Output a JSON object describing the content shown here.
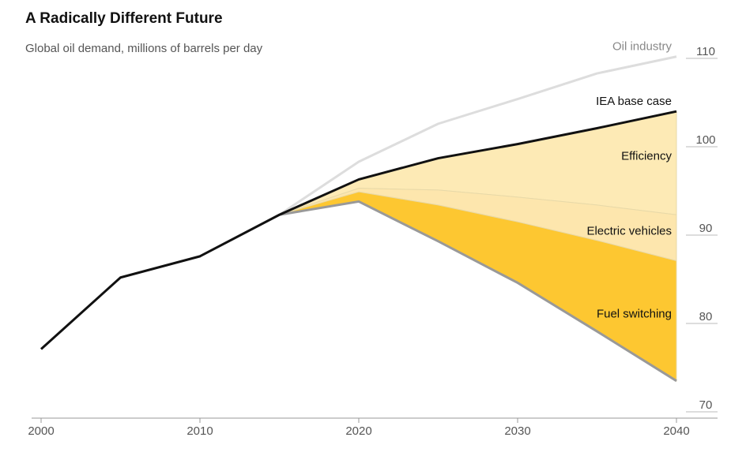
{
  "chart_data": {
    "type": "line",
    "title": "A Radically Different Future",
    "subtitle": "Global oil demand, millions of barrels per day",
    "x": [
      2000,
      2005,
      2010,
      2015,
      2020,
      2025,
      2030,
      2035,
      2040
    ],
    "xlim": [
      2000,
      2040
    ],
    "xticks": [
      2000,
      2010,
      2020,
      2030,
      2040
    ],
    "ylim": [
      70,
      110
    ],
    "yticks": [
      70,
      80,
      90,
      100,
      110
    ],
    "series": [
      {
        "name": "Oil industry",
        "kind": "line",
        "color": "#dddddd",
        "values": [
          null,
          null,
          null,
          92.3,
          98.3,
          102.6,
          105.4,
          108.3,
          110.2
        ]
      },
      {
        "name": "Efficiency",
        "kind": "area",
        "color": "#fdeab5",
        "values": [
          null,
          null,
          null,
          92.3,
          95.3,
          95.1,
          94.3,
          93.4,
          92.3
        ]
      },
      {
        "name": "Electric vehicles",
        "kind": "area",
        "color": "#fde6ad",
        "values": [
          null,
          null,
          null,
          92.3,
          94.9,
          93.4,
          91.5,
          89.4,
          87.1
        ]
      },
      {
        "name": "Fuel switching",
        "kind": "area",
        "color": "#fdc731",
        "values": [
          null,
          null,
          null,
          92.3,
          93.8,
          89.3,
          84.6,
          79.1,
          73.5
        ]
      },
      {
        "name": "IEA base case",
        "kind": "line",
        "color": "#111111",
        "values": [
          77.1,
          85.2,
          87.6,
          92.3,
          96.3,
          98.7,
          100.3,
          102.1,
          104.0
        ]
      }
    ]
  }
}
